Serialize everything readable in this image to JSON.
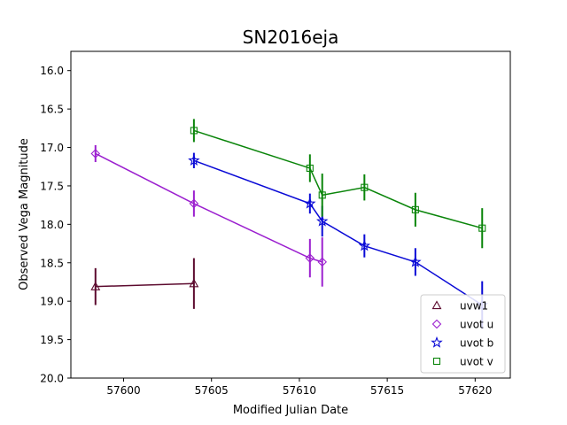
{
  "chart_data": {
    "type": "scatter",
    "title": "SN2016eja",
    "xlabel": "Modified Julian Date",
    "ylabel": "Observed Vega Magnitude",
    "xlim": [
      57597.0,
      57622.0
    ],
    "ylim": [
      20.0,
      15.75
    ],
    "y_inverted": true,
    "xticks": [
      57600,
      57605,
      57610,
      57615,
      57620
    ],
    "yticks": [
      16.0,
      16.5,
      17.0,
      17.5,
      18.0,
      18.5,
      19.0,
      19.5,
      20.0
    ],
    "xtick_labels": [
      "57600",
      "57605",
      "57610",
      "57615",
      "57620"
    ],
    "ytick_labels": [
      "16.0",
      "16.5",
      "17.0",
      "17.5",
      "18.0",
      "18.5",
      "19.0",
      "19.5",
      "20.0"
    ],
    "legend_position": "lower-right",
    "grid": false,
    "series": [
      {
        "name": "uvw1",
        "marker": "triangle",
        "color": "#5c0a2e",
        "x": [
          57598.4,
          57604.0
        ],
        "y": [
          18.81,
          18.77
        ],
        "yerr": [
          0.24,
          0.33
        ]
      },
      {
        "name": "uvot u",
        "marker": "diamond",
        "color": "#9b1fcf",
        "x": [
          57598.4,
          57604.0,
          57610.6,
          57611.3
        ],
        "y": [
          17.08,
          17.73,
          18.44,
          18.49
        ],
        "yerr": [
          0.11,
          0.17,
          0.25,
          0.32
        ]
      },
      {
        "name": "uvot b",
        "marker": "star",
        "color": "#0a0ad6",
        "x": [
          57604.0,
          57610.6,
          57611.3,
          57613.7,
          57616.6,
          57620.4
        ],
        "y": [
          17.17,
          17.73,
          17.96,
          18.28,
          18.49,
          19.05
        ],
        "yerr": [
          0.1,
          0.13,
          0.2,
          0.15,
          0.18,
          0.31
        ]
      },
      {
        "name": "uvot v",
        "marker": "square",
        "color": "#0a850a",
        "x": [
          57604.0,
          57610.6,
          57611.3,
          57613.7,
          57616.6,
          57620.4
        ],
        "y": [
          16.78,
          17.27,
          17.62,
          17.52,
          17.81,
          18.05
        ],
        "yerr": [
          0.15,
          0.18,
          0.28,
          0.17,
          0.22,
          0.26
        ]
      }
    ]
  }
}
